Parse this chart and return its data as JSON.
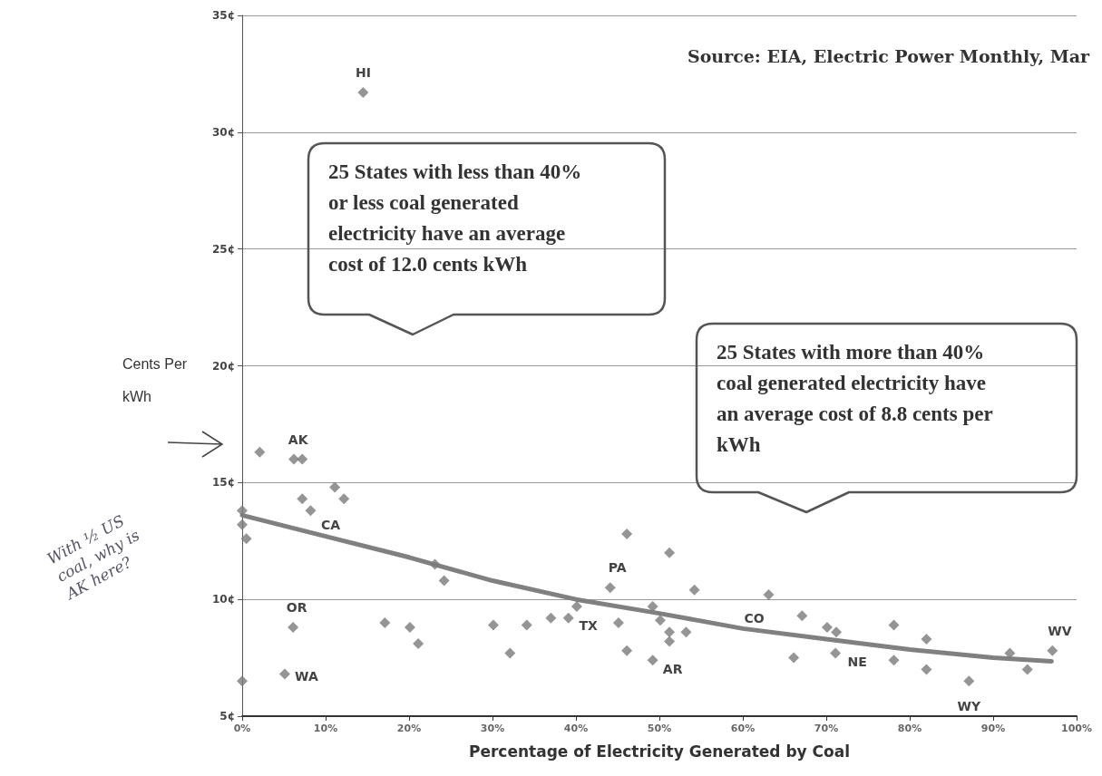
{
  "chart_data": {
    "type": "scatter",
    "xlabel": "Percentage of Electricity Generated by Coal",
    "ylabel": "Cents Per kWh",
    "xlim": [
      0,
      100
    ],
    "xticks": [
      {
        "value": 0,
        "label": "0%"
      },
      {
        "value": 10,
        "label": "10%"
      },
      {
        "value": 20,
        "label": "20%"
      },
      {
        "value": 30,
        "label": "30%"
      },
      {
        "value": 40,
        "label": "40%"
      },
      {
        "value": 50,
        "label": "50%"
      },
      {
        "value": 60,
        "label": "60%"
      },
      {
        "value": 70,
        "label": "70%"
      },
      {
        "value": 80,
        "label": "80%"
      },
      {
        "value": 90,
        "label": "90%"
      },
      {
        "value": 100,
        "label": "100%"
      }
    ],
    "ylim": [
      5,
      35
    ],
    "yticks": [
      {
        "value": 5,
        "label": "5¢"
      },
      {
        "value": 10,
        "label": "10¢"
      },
      {
        "value": 15,
        "label": "15¢"
      },
      {
        "value": 20,
        "label": "20¢"
      },
      {
        "value": 25,
        "label": "25¢"
      },
      {
        "value": 30,
        "label": "30¢"
      },
      {
        "value": 35,
        "label": "35¢"
      }
    ],
    "grid": "y",
    "marker": "diamond",
    "series": [
      {
        "color": "#7a7a7a",
        "x": [
          2.1,
          6.2,
          7.2,
          11.1,
          12.2,
          7.2,
          8.2,
          0,
          0,
          0.5,
          23.1,
          24.2,
          6.1,
          17.1,
          20.1,
          21.1,
          5.1,
          0,
          46.1,
          51.2,
          44.1,
          54.2,
          40.1,
          49.2,
          37,
          39.1,
          30.1,
          34.1,
          45.1,
          50.1,
          51.2,
          53.2,
          51.2,
          32.1,
          46.1,
          49.2,
          63.1,
          67.1,
          70.1,
          71.2,
          66.1,
          71.1,
          78.1,
          78.1,
          82,
          82,
          87.1,
          92,
          94.1,
          97.1,
          14.5
        ],
        "values": [
          16.3,
          16,
          16,
          14.8,
          14.3,
          14.3,
          13.8,
          13.8,
          13.2,
          12.6,
          11.5,
          10.8,
          8.8,
          9,
          8.8,
          8.1,
          6.8,
          6.5,
          12.8,
          12,
          10.5,
          10.4,
          9.7,
          9.7,
          9.2,
          9.2,
          8.9,
          8.9,
          9,
          9.1,
          8.6,
          8.6,
          8.2,
          7.7,
          7.8,
          7.4,
          10.2,
          9.3,
          8.8,
          8.6,
          7.5,
          7.7,
          8.9,
          7.4,
          8.3,
          7,
          6.5,
          7.7,
          7,
          7.8,
          31.7
        ]
      },
      {
        "type": "line",
        "color": "#808080",
        "marker": "none",
        "x": [
          0,
          10,
          20,
          30,
          40,
          50,
          60,
          70,
          80,
          90,
          97
        ],
        "values": [
          13.6,
          12.7,
          11.8,
          10.8,
          10,
          9.4,
          8.75,
          8.3,
          7.85,
          7.5,
          7.35
        ]
      }
    ],
    "annotations": [
      {
        "text": "AK",
        "x": 6.7,
        "y": 16
      },
      {
        "text": "CA",
        "x": 8.2,
        "y": 13.8
      },
      {
        "text": "OR",
        "x": 6.1,
        "y": 8.8
      },
      {
        "text": "WA",
        "x": 5.1,
        "y": 6.8
      },
      {
        "text": "HI",
        "x": 14.5,
        "y": 31.7
      },
      {
        "text": "PA",
        "x": 44.1,
        "y": 10.5
      },
      {
        "text": "TX",
        "x": 39.1,
        "y": 9.2
      },
      {
        "text": "AR",
        "x": 49.2,
        "y": 7.4
      },
      {
        "text": "CO",
        "x": 63.1,
        "y": 10.2
      },
      {
        "text": "NE",
        "x": 71.1,
        "y": 7.7
      },
      {
        "text": "WY",
        "x": 87.1,
        "y": 6.5
      },
      {
        "text": "WV",
        "x": 97.1,
        "y": 7.8
      },
      "Source: EIA, Electric Power Monthly, Mar",
      "25 States with less than 40% or less coal generated electricity have an average cost of 12.0 cents kWh",
      "25 States with more than 40% coal generated electricity have an average cost of 8.8 cents per kWh",
      "With ½ US coal, why is AK here?"
    ]
  }
}
